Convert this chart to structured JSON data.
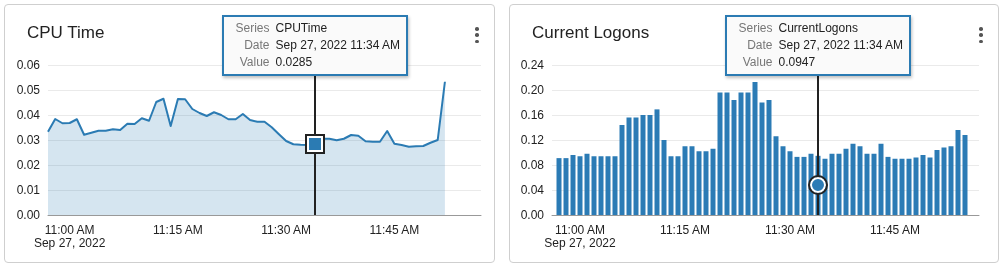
{
  "chart_data": [
    {
      "type": "area",
      "title": "CPU Time",
      "grid": "y",
      "marker": "none",
      "xlim": [
        "2022-09-27T10:57",
        "2022-09-27T11:57"
      ],
      "xticks": [
        {
          "value": "2022-09-27T11:00",
          "label": "11:00 AM\nSep 27, 2022"
        },
        {
          "value": "2022-09-27T11:15",
          "label": "11:15 AM"
        },
        {
          "value": "2022-09-27T11:30",
          "label": "11:30 AM"
        },
        {
          "value": "2022-09-27T11:45",
          "label": "11:45 AM"
        }
      ],
      "ylim": [
        0,
        0.06
      ],
      "yticks": [
        {
          "value": 0,
          "label": "0.00"
        },
        {
          "value": 0.01,
          "label": "0.01"
        },
        {
          "value": 0.02,
          "label": "0.02"
        },
        {
          "value": 0.03,
          "label": "0.03"
        },
        {
          "value": 0.04,
          "label": "0.04"
        },
        {
          "value": 0.05,
          "label": "0.05"
        },
        {
          "value": 0.06,
          "label": "0.06"
        }
      ],
      "ref_lines": [
        {
          "axis": "x",
          "value": "2022-09-27T11:34",
          "color": "#222222"
        }
      ],
      "annotations": [
        "Series CPUTime\nDate Sep 27, 2022 11:34 AM\nValue 0.0285"
      ],
      "x": [
        "2022-09-27T10:57",
        "2022-09-27T10:58",
        "2022-09-27T10:59",
        "2022-09-27T11:00",
        "2022-09-27T11:01",
        "2022-09-27T11:02",
        "2022-09-27T11:03",
        "2022-09-27T11:04",
        "2022-09-27T11:05",
        "2022-09-27T11:06",
        "2022-09-27T11:07",
        "2022-09-27T11:08",
        "2022-09-27T11:09",
        "2022-09-27T11:10",
        "2022-09-27T11:11",
        "2022-09-27T11:12",
        "2022-09-27T11:13",
        "2022-09-27T11:14",
        "2022-09-27T11:15",
        "2022-09-27T11:16",
        "2022-09-27T11:17",
        "2022-09-27T11:18",
        "2022-09-27T11:19",
        "2022-09-27T11:20",
        "2022-09-27T11:21",
        "2022-09-27T11:22",
        "2022-09-27T11:23",
        "2022-09-27T11:24",
        "2022-09-27T11:25",
        "2022-09-27T11:26",
        "2022-09-27T11:27",
        "2022-09-27T11:28",
        "2022-09-27T11:29",
        "2022-09-27T11:30",
        "2022-09-27T11:31",
        "2022-09-27T11:32",
        "2022-09-27T11:33",
        "2022-09-27T11:34",
        "2022-09-27T11:35",
        "2022-09-27T11:36",
        "2022-09-27T11:37",
        "2022-09-27T11:38",
        "2022-09-27T11:39",
        "2022-09-27T11:40",
        "2022-09-27T11:41",
        "2022-09-27T11:42",
        "2022-09-27T11:43",
        "2022-09-27T11:44",
        "2022-09-27T11:45",
        "2022-09-27T11:46",
        "2022-09-27T11:47",
        "2022-09-27T11:48",
        "2022-09-27T11:49",
        "2022-09-27T11:50",
        "2022-09-27T11:51",
        "2022-09-27T11:52"
      ],
      "series": [
        {
          "color": "#2b7bb3",
          "values": [
            0.0333,
            0.0384,
            0.0367,
            0.0368,
            0.0383,
            0.0321,
            0.0329,
            0.0337,
            0.0337,
            0.0343,
            0.034,
            0.0365,
            0.0364,
            0.0387,
            0.0377,
            0.0452,
            0.0465,
            0.0356,
            0.0464,
            0.0463,
            0.0424,
            0.0408,
            0.0396,
            0.0411,
            0.04,
            0.0383,
            0.0383,
            0.0404,
            0.038,
            0.0373,
            0.0373,
            0.0351,
            0.0323,
            0.0296,
            0.0283,
            0.0281,
            0.028,
            0.0285,
            0.0305,
            0.0305,
            0.0299,
            0.0305,
            0.032,
            0.0317,
            0.0295,
            0.0293,
            0.0293,
            0.0336,
            0.0285,
            0.028,
            0.0273,
            0.0275,
            0.0276,
            0.0289,
            0.03,
            0.0533
          ]
        }
      ]
    },
    {
      "type": "bar",
      "title": "Current Logons",
      "grid": "y",
      "xlim": [
        "2022-09-27T10:56",
        "2022-09-27T11:57"
      ],
      "xticks": [
        {
          "value": "2022-09-27T11:00",
          "label": "11:00 AM\nSep 27, 2022"
        },
        {
          "value": "2022-09-27T11:15",
          "label": "11:15 AM"
        },
        {
          "value": "2022-09-27T11:30",
          "label": "11:30 AM"
        },
        {
          "value": "2022-09-27T11:45",
          "label": "11:45 AM"
        }
      ],
      "ylim": [
        0,
        0.24
      ],
      "yticks": [
        {
          "value": 0,
          "label": "0.00"
        },
        {
          "value": 0.04,
          "label": "0.04"
        },
        {
          "value": 0.08,
          "label": "0.08"
        },
        {
          "value": 0.12,
          "label": "0.12"
        },
        {
          "value": 0.16,
          "label": "0.16"
        },
        {
          "value": 0.2,
          "label": "0.20"
        },
        {
          "value": 0.24,
          "label": "0.24"
        }
      ],
      "ref_lines": [
        {
          "axis": "x",
          "value": "2022-09-27T11:34",
          "color": "#222222"
        }
      ],
      "annotations": [
        "Series CurrentLogons\nDate Sep 27, 2022 11:34 AM\nValue 0.0947"
      ],
      "x": [
        "2022-09-27T10:57",
        "2022-09-27T10:58",
        "2022-09-27T10:59",
        "2022-09-27T11:00",
        "2022-09-27T11:01",
        "2022-09-27T11:02",
        "2022-09-27T11:03",
        "2022-09-27T11:04",
        "2022-09-27T11:05",
        "2022-09-27T11:06",
        "2022-09-27T11:07",
        "2022-09-27T11:08",
        "2022-09-27T11:09",
        "2022-09-27T11:10",
        "2022-09-27T11:11",
        "2022-09-27T11:12",
        "2022-09-27T11:13",
        "2022-09-27T11:14",
        "2022-09-27T11:15",
        "2022-09-27T11:16",
        "2022-09-27T11:17",
        "2022-09-27T11:18",
        "2022-09-27T11:19",
        "2022-09-27T11:20",
        "2022-09-27T11:21",
        "2022-09-27T11:22",
        "2022-09-27T11:23",
        "2022-09-27T11:24",
        "2022-09-27T11:25",
        "2022-09-27T11:26",
        "2022-09-27T11:27",
        "2022-09-27T11:28",
        "2022-09-27T11:29",
        "2022-09-27T11:30",
        "2022-09-27T11:31",
        "2022-09-27T11:32",
        "2022-09-27T11:33",
        "2022-09-27T11:34",
        "2022-09-27T11:35",
        "2022-09-27T11:36",
        "2022-09-27T11:37",
        "2022-09-27T11:38",
        "2022-09-27T11:39",
        "2022-09-27T11:40",
        "2022-09-27T11:41",
        "2022-09-27T11:42",
        "2022-09-27T11:43",
        "2022-09-27T11:44",
        "2022-09-27T11:45",
        "2022-09-27T11:46",
        "2022-09-27T11:47",
        "2022-09-27T11:48",
        "2022-09-27T11:49",
        "2022-09-27T11:50",
        "2022-09-27T11:51",
        "2022-09-27T11:52",
        "2022-09-27T11:53",
        "2022-09-27T11:54",
        "2022-09-27T11:55"
      ],
      "series": [
        {
          "color": "#2b7bb5",
          "values": [
            0.091,
            0.091,
            0.096,
            0.094,
            0.098,
            0.094,
            0.094,
            0.094,
            0.094,
            0.144,
            0.156,
            0.156,
            0.16,
            0.16,
            0.169,
            0.12,
            0.094,
            0.094,
            0.11,
            0.11,
            0.102,
            0.102,
            0.106,
            0.196,
            0.196,
            0.184,
            0.196,
            0.196,
            0.213,
            0.18,
            0.184,
            0.126,
            0.11,
            0.102,
            0.093,
            0.093,
            0.098,
            0.0947,
            0.09,
            0.098,
            0.098,
            0.106,
            0.114,
            0.11,
            0.098,
            0.098,
            0.114,
            0.093,
            0.09,
            0.09,
            0.09,
            0.092,
            0.096,
            0.092,
            0.104,
            0.108,
            0.11,
            0.136,
            0.128
          ]
        }
      ]
    }
  ]
}
